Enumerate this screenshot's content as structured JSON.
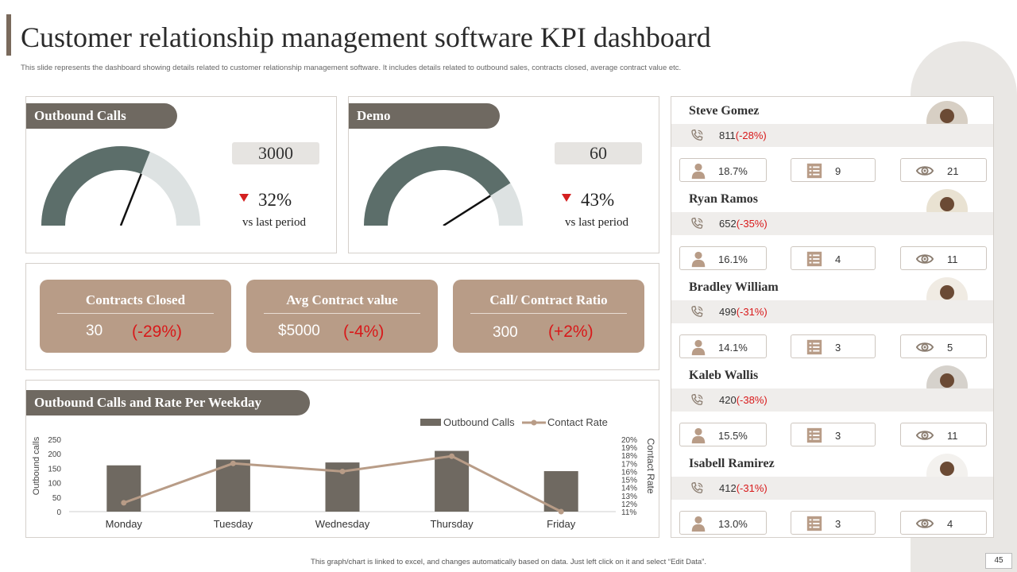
{
  "header": {
    "title": "Customer relationship management software KPI dashboard",
    "subtitle": "This slide represents the dashboard showing details related to customer relationship management software. It includes details related to outbound sales, contracts closed, average contract value etc."
  },
  "gauges": [
    {
      "title": "Outbound Calls",
      "value": "3000",
      "change": "32%",
      "change_note": "vs last period",
      "fill_fraction": 0.62
    },
    {
      "title": "Demo",
      "value": "60",
      "change": "43%",
      "change_note": "vs last period",
      "fill_fraction": 0.82
    }
  ],
  "kpis": [
    {
      "title": "Contracts Closed",
      "value": "30",
      "change": "(-29%)"
    },
    {
      "title": "Avg Contract value",
      "value": "$5000",
      "change": "(-4%)"
    },
    {
      "title": "Call/ Contract Ratio",
      "value": "300",
      "change": "(+2%)"
    }
  ],
  "reps": [
    {
      "name": "Steve Gomez",
      "calls": "811",
      "calls_change": "(-28%)",
      "rate": "18.7%",
      "lists": "9",
      "views": "21"
    },
    {
      "name": "Ryan Ramos",
      "calls": "652",
      "calls_change": "(-35%)",
      "rate": "16.1%",
      "lists": "4",
      "views": "11"
    },
    {
      "name": "Bradley William",
      "calls": "499",
      "calls_change": "(-31%)",
      "rate": "14.1%",
      "lists": "3",
      "views": "5"
    },
    {
      "name": "Kaleb Wallis",
      "calls": "420",
      "calls_change": "(-38%)",
      "rate": "15.5%",
      "lists": "3",
      "views": "11"
    },
    {
      "name": "Isabell Ramirez",
      "calls": "412",
      "calls_change": "(-31%)",
      "rate": "13.0%",
      "lists": "3",
      "views": "4"
    }
  ],
  "icons": {
    "phone": "phone-icon",
    "person": "person-icon",
    "list": "list-icon",
    "eye": "eye-icon"
  },
  "colors": {
    "dark": "#6f6961",
    "gauge_fill": "#5c6e6a",
    "gauge_track": "#dde2e2",
    "kpi_card": "#b89c87",
    "negative": "#d8191a",
    "bar": "#6f6961",
    "line": "#b89c87"
  },
  "chart_data": {
    "type": "bar",
    "title": "Outbound Calls and Rate Per Weekday",
    "categories": [
      "Monday",
      "Tuesday",
      "Wednesday",
      "Thursday",
      "Friday"
    ],
    "series": [
      {
        "name": "Outbound Calls",
        "type": "bar",
        "axis": "left",
        "values": [
          160,
          180,
          170,
          210,
          140
        ]
      },
      {
        "name": "Contact Rate",
        "type": "line",
        "axis": "right",
        "values": [
          12.1,
          17.0,
          16.0,
          17.9,
          11.0
        ]
      }
    ],
    "ylabel": "Outbound calls",
    "y2label": "Contact Rate",
    "ylim": [
      0,
      250
    ],
    "y_ticks": [
      "250",
      "200",
      "150",
      "100",
      "50",
      "0"
    ],
    "y2lim": [
      11,
      20
    ],
    "y2_ticks": [
      "20%",
      "19%",
      "18%",
      "17%",
      "16%",
      "15%",
      "14%",
      "13%",
      "12%",
      "11%"
    ],
    "legend": "top-right"
  },
  "footer": {
    "note": "This graph/chart is linked to excel, and changes automatically based on data. Just left click on it and select “Edit Data”.",
    "page": "45"
  }
}
